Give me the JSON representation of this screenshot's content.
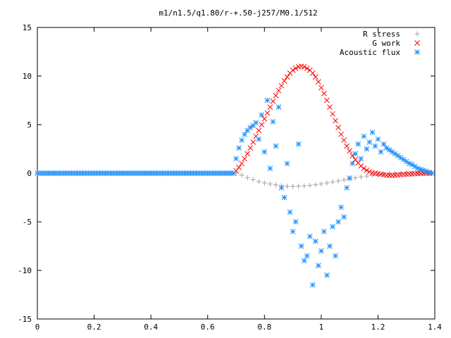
{
  "chart_data": {
    "type": "scatter",
    "title": "m1/n1.5/q1.80/r-+.50-j257/M0.1/512",
    "xlabel": "",
    "ylabel": "",
    "xlim": [
      0,
      1.4
    ],
    "ylim": [
      -15,
      15
    ],
    "x_ticks": [
      "0",
      "0.2",
      "0.4",
      "0.6",
      "0.8",
      "1",
      "1.2",
      "1.4"
    ],
    "y_ticks": [
      "15",
      "10",
      "5",
      "0",
      "-5",
      "-10",
      "-15"
    ],
    "grid": false,
    "legend_position": "top-right",
    "series": [
      {
        "name": "R stress",
        "marker": "+",
        "color": "#a0a0a0",
        "x": [
          0,
          0.02,
          0.04,
          0.06,
          0.08,
          0.1,
          0.12,
          0.14,
          0.16,
          0.18,
          0.2,
          0.22,
          0.24,
          0.26,
          0.28,
          0.3,
          0.32,
          0.34,
          0.36,
          0.38,
          0.4,
          0.42,
          0.44,
          0.46,
          0.48,
          0.5,
          0.52,
          0.54,
          0.56,
          0.58,
          0.6,
          0.62,
          0.64,
          0.66,
          0.68,
          0.7,
          0.72,
          0.74,
          0.76,
          0.78,
          0.8,
          0.82,
          0.84,
          0.86,
          0.88,
          0.9,
          0.92,
          0.94,
          0.96,
          0.98,
          1.0,
          1.02,
          1.04,
          1.06,
          1.08,
          1.1,
          1.12,
          1.14,
          1.16,
          1.18,
          1.2,
          1.22,
          1.24,
          1.26,
          1.28,
          1.3,
          1.32,
          1.34,
          1.36,
          1.38
        ],
        "y": [
          0,
          0,
          0,
          0,
          0,
          0,
          0,
          0,
          0,
          0,
          0,
          0,
          0,
          0,
          0,
          0,
          0,
          0,
          0,
          0,
          0,
          0,
          0,
          0,
          0,
          0,
          0,
          0,
          0,
          0,
          0,
          0,
          0,
          0,
          0,
          0,
          -0.2,
          -0.45,
          -0.65,
          -0.85,
          -1.0,
          -1.1,
          -1.2,
          -1.28,
          -1.33,
          -1.35,
          -1.33,
          -1.3,
          -1.25,
          -1.18,
          -1.1,
          -1.0,
          -0.9,
          -0.8,
          -0.7,
          -0.58,
          -0.48,
          -0.38,
          -0.3,
          -0.22,
          -0.16,
          -0.1,
          -0.06,
          -0.03,
          -0.01,
          0,
          0,
          0,
          0,
          0
        ]
      },
      {
        "name": "G work",
        "marker": "x",
        "color": "#ff0000",
        "x": [
          0.69,
          0.7,
          0.71,
          0.72,
          0.73,
          0.74,
          0.75,
          0.76,
          0.77,
          0.78,
          0.79,
          0.8,
          0.81,
          0.82,
          0.83,
          0.84,
          0.85,
          0.86,
          0.87,
          0.88,
          0.89,
          0.9,
          0.91,
          0.92,
          0.93,
          0.94,
          0.95,
          0.96,
          0.97,
          0.98,
          0.99,
          1.0,
          1.01,
          1.02,
          1.03,
          1.04,
          1.05,
          1.06,
          1.07,
          1.08,
          1.09,
          1.1,
          1.11,
          1.12,
          1.13,
          1.14,
          1.15,
          1.16,
          1.17,
          1.18,
          1.19,
          1.2,
          1.21,
          1.22,
          1.23,
          1.24,
          1.25,
          1.26,
          1.27,
          1.28,
          1.29,
          1.3,
          1.31,
          1.32,
          1.33,
          1.34,
          1.35,
          1.36,
          1.37,
          1.38
        ],
        "y": [
          0,
          0.25,
          0.6,
          1.0,
          1.5,
          2.0,
          2.6,
          3.2,
          3.8,
          4.4,
          5.0,
          5.6,
          6.2,
          6.8,
          7.4,
          8.0,
          8.5,
          9.0,
          9.5,
          9.9,
          10.3,
          10.6,
          10.8,
          10.95,
          11.0,
          10.95,
          10.8,
          10.6,
          10.3,
          9.9,
          9.4,
          8.8,
          8.2,
          7.5,
          6.8,
          6.1,
          5.4,
          4.7,
          4.0,
          3.4,
          2.8,
          2.3,
          1.8,
          1.4,
          1.05,
          0.75,
          0.5,
          0.3,
          0.15,
          0.05,
          0,
          -0.05,
          -0.1,
          -0.15,
          -0.2,
          -0.22,
          -0.22,
          -0.2,
          -0.18,
          -0.15,
          -0.12,
          -0.1,
          -0.08,
          -0.06,
          -0.05,
          -0.03,
          -0.02,
          0,
          0,
          0
        ]
      },
      {
        "name": "Acoustic flux",
        "marker": "*",
        "color": "#1e90ff",
        "x": [
          0,
          0.01,
          0.02,
          0.03,
          0.04,
          0.05,
          0.06,
          0.07,
          0.08,
          0.09,
          0.1,
          0.11,
          0.12,
          0.13,
          0.14,
          0.15,
          0.16,
          0.17,
          0.18,
          0.19,
          0.2,
          0.21,
          0.22,
          0.23,
          0.24,
          0.25,
          0.26,
          0.27,
          0.28,
          0.29,
          0.3,
          0.31,
          0.32,
          0.33,
          0.34,
          0.35,
          0.36,
          0.37,
          0.38,
          0.39,
          0.4,
          0.41,
          0.42,
          0.43,
          0.44,
          0.45,
          0.46,
          0.47,
          0.48,
          0.49,
          0.5,
          0.51,
          0.52,
          0.53,
          0.54,
          0.55,
          0.56,
          0.57,
          0.58,
          0.59,
          0.6,
          0.61,
          0.62,
          0.63,
          0.64,
          0.65,
          0.66,
          0.67,
          0.68,
          0.69,
          0.7,
          0.71,
          0.72,
          0.73,
          0.74,
          0.75,
          0.76,
          0.77,
          0.78,
          0.79,
          0.8,
          0.81,
          0.82,
          0.83,
          0.84,
          0.85,
          0.86,
          0.87,
          0.88,
          0.89,
          0.9,
          0.91,
          0.92,
          0.93,
          0.94,
          0.95,
          0.96,
          0.97,
          0.98,
          0.99,
          1.0,
          1.01,
          1.02,
          1.03,
          1.04,
          1.05,
          1.06,
          1.07,
          1.08,
          1.09,
          1.1,
          1.11,
          1.12,
          1.13,
          1.14,
          1.15,
          1.16,
          1.17,
          1.18,
          1.19,
          1.2,
          1.21,
          1.22,
          1.23,
          1.24,
          1.25,
          1.26,
          1.27,
          1.28,
          1.29,
          1.3,
          1.31,
          1.32,
          1.33,
          1.34,
          1.35,
          1.36,
          1.37,
          1.38,
          1.39
        ],
        "y": [
          0,
          0,
          0,
          0,
          0,
          0,
          0,
          0,
          0,
          0,
          0,
          0,
          0,
          0,
          0,
          0,
          0,
          0,
          0,
          0,
          0,
          0,
          0,
          0,
          0,
          0,
          0,
          0,
          0,
          0,
          0,
          0,
          0,
          0,
          0,
          0,
          0,
          0,
          0,
          0,
          0,
          0,
          0,
          0,
          0,
          0,
          0,
          0,
          0,
          0,
          0,
          0,
          0,
          0,
          0,
          0,
          0,
          0,
          0,
          0,
          0,
          0,
          0,
          0,
          0,
          0,
          0,
          0,
          0,
          0,
          1.5,
          2.6,
          3.4,
          4.0,
          4.4,
          4.7,
          4.9,
          5.2,
          3.5,
          6.0,
          2.2,
          7.5,
          0.5,
          5.3,
          2.8,
          6.8,
          -1.5,
          -2.5,
          1.0,
          -4.0,
          -6.0,
          -5.0,
          3.0,
          -7.5,
          -9.0,
          -8.5,
          -6.5,
          -11.5,
          -7.0,
          -9.5,
          -8.0,
          -6.0,
          -10.5,
          -7.5,
          -5.5,
          -8.5,
          -5.0,
          -3.5,
          -4.5,
          -1.5,
          -0.5,
          1.0,
          2.0,
          3.0,
          1.5,
          3.8,
          2.5,
          3.2,
          4.2,
          2.8,
          3.5,
          2.2,
          3.0,
          2.6,
          2.4,
          2.2,
          2.0,
          1.8,
          1.6,
          1.4,
          1.2,
          1.0,
          0.9,
          0.7,
          0.5,
          0.4,
          0.3,
          0.2,
          0.1,
          0
        ]
      }
    ]
  }
}
